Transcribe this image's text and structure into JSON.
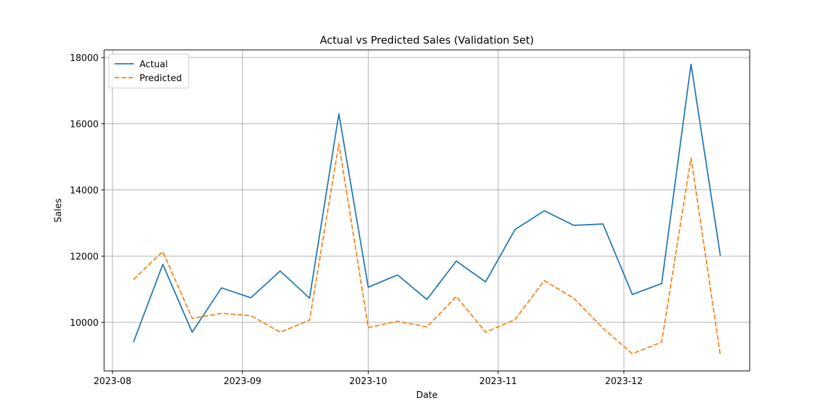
{
  "chart_data": {
    "type": "line",
    "title": "Actual vs Predicted Sales (Validation Set)",
    "xlabel": "Date",
    "ylabel": "Sales",
    "x": [
      "2023-08-06",
      "2023-08-13",
      "2023-08-20",
      "2023-08-27",
      "2023-09-03",
      "2023-09-10",
      "2023-09-17",
      "2023-09-24",
      "2023-10-01",
      "2023-10-08",
      "2023-10-15",
      "2023-10-22",
      "2023-10-29",
      "2023-11-05",
      "2023-11-12",
      "2023-11-19",
      "2023-11-26",
      "2023-12-03",
      "2023-12-10",
      "2023-12-17",
      "2023-12-24"
    ],
    "series": [
      {
        "name": "Actual",
        "color": "#1f77b4",
        "style": "solid",
        "values": [
          9400,
          11750,
          9700,
          11040,
          10740,
          11550,
          10730,
          16300,
          11060,
          11430,
          10690,
          11850,
          11220,
          12800,
          13370,
          12930,
          12970,
          10840,
          11170,
          17800,
          12010
        ]
      },
      {
        "name": "Predicted",
        "color": "#ff7f0e",
        "style": "dashed",
        "values": [
          11290,
          12140,
          10120,
          10270,
          10200,
          9700,
          10060,
          15400,
          9840,
          10030,
          9860,
          10780,
          9700,
          10080,
          11260,
          10730,
          9820,
          9050,
          9400,
          14970,
          9000
        ]
      }
    ],
    "xlim": [
      "2023-07-30",
      "2023-12-31"
    ],
    "ylim": [
      8530,
      18230
    ],
    "x_ticks": [
      {
        "label": "2023-08",
        "date": "2023-08-01"
      },
      {
        "label": "2023-09",
        "date": "2023-09-01"
      },
      {
        "label": "2023-10",
        "date": "2023-10-01"
      },
      {
        "label": "2023-11",
        "date": "2023-11-01"
      },
      {
        "label": "2023-12",
        "date": "2023-12-01"
      }
    ],
    "y_ticks": [
      10000,
      12000,
      14000,
      16000,
      18000
    ],
    "grid": true,
    "legend_position": "top-left"
  }
}
